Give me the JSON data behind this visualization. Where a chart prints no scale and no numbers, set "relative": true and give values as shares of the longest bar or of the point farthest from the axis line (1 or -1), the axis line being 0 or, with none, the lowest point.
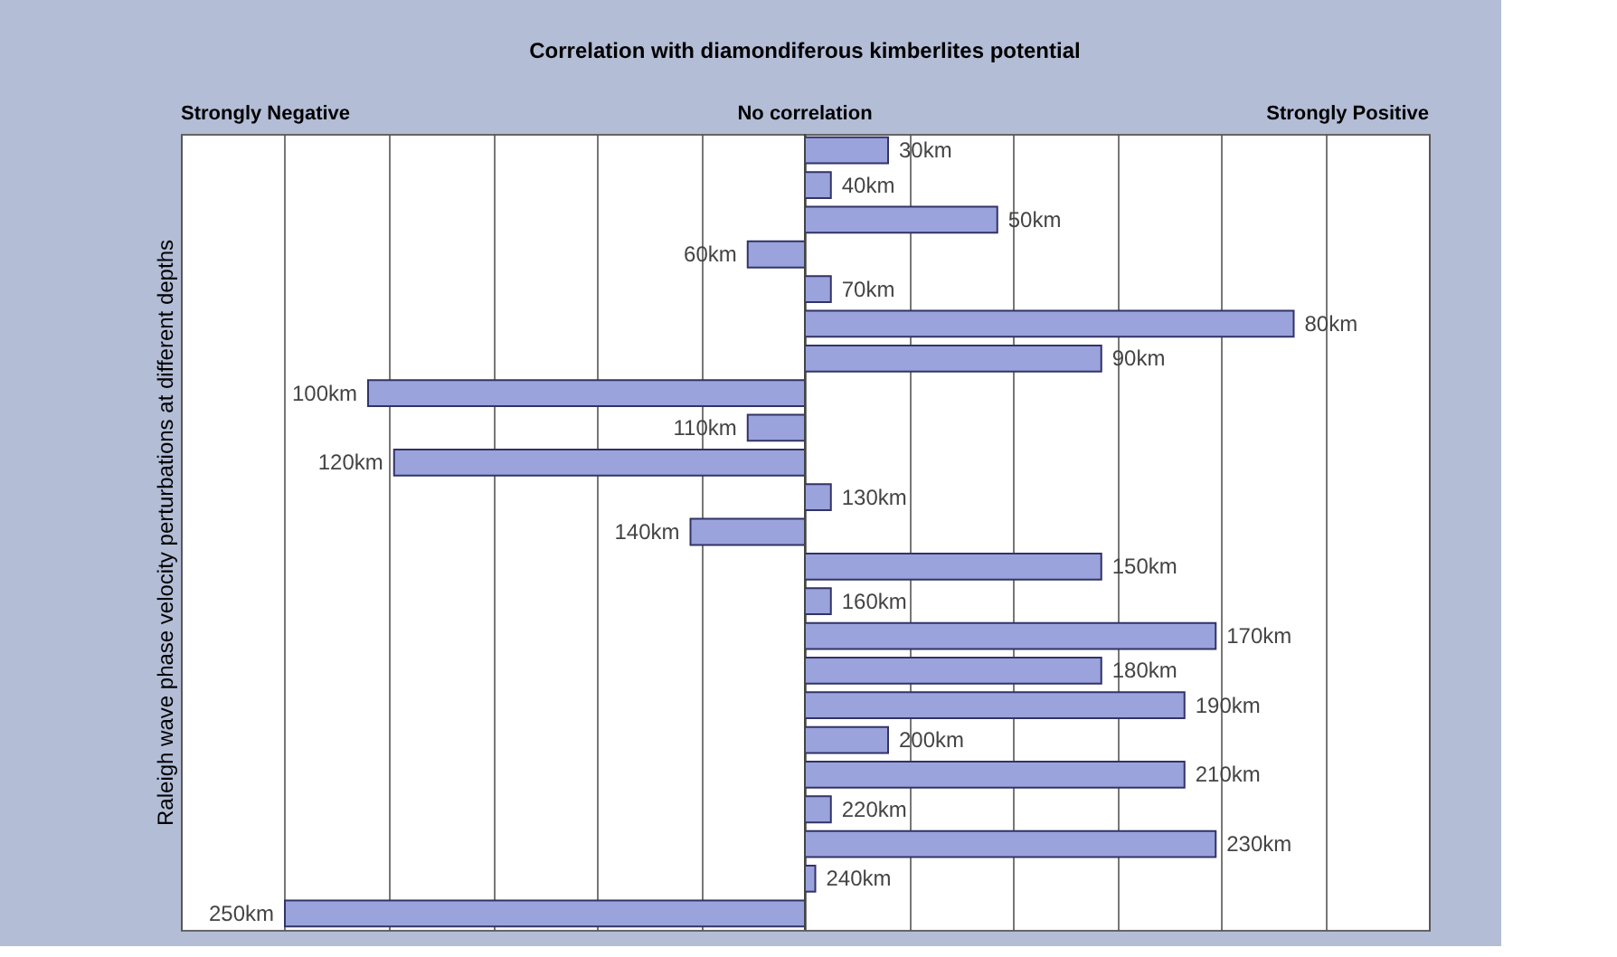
{
  "chart_data": {
    "type": "bar",
    "orientation": "horizontal",
    "relative": true,
    "title": "Correlation with diamondiferous kimberlites potential",
    "ylabel": "Raleigh wave phase velocity perturbations at different depths",
    "annotations": [
      "Strongly Negative",
      "No correlation",
      "Strongly Positive"
    ],
    "categories": [
      "30km",
      "40km",
      "50km",
      "60km",
      "70km",
      "80km",
      "90km",
      "100km",
      "110km",
      "120km",
      "130km",
      "140km",
      "150km",
      "160km",
      "170km",
      "180km",
      "190km",
      "200km",
      "210km",
      "220km",
      "230km",
      "240km",
      "250km"
    ],
    "values": [
      0.16,
      0.05,
      0.37,
      -0.11,
      0.05,
      0.94,
      0.57,
      -0.84,
      -0.11,
      -0.79,
      0.05,
      -0.22,
      0.57,
      0.05,
      0.79,
      0.57,
      0.73,
      0.16,
      0.73,
      0.05,
      0.79,
      0.02,
      -1
    ],
    "color": "#9aa3dc",
    "grid": "x",
    "tick_labels": false,
    "legend": false
  }
}
